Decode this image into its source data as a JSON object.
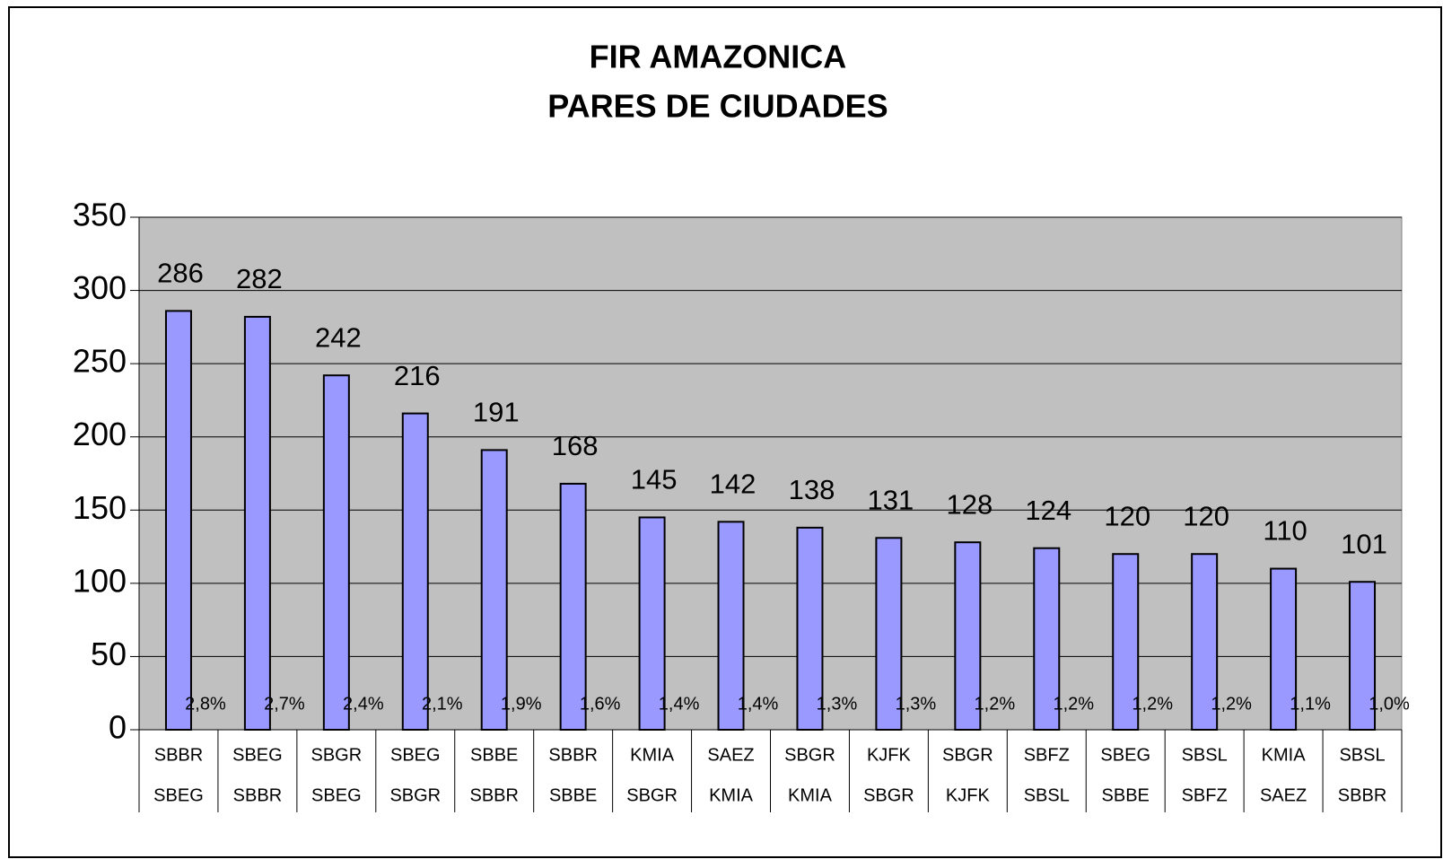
{
  "chart_data": {
    "type": "bar",
    "title": [
      "FIR AMAZONICA",
      "PARES DE CIUDADES"
    ],
    "categories": [
      [
        "SBBR",
        "SBEG"
      ],
      [
        "SBEG",
        "SBBR"
      ],
      [
        "SBGR",
        "SBEG"
      ],
      [
        "SBEG",
        "SBGR"
      ],
      [
        "SBBE",
        "SBBR"
      ],
      [
        "SBBR",
        "SBBE"
      ],
      [
        "KMIA",
        "SBGR"
      ],
      [
        "SAEZ",
        "KMIA"
      ],
      [
        "SBGR",
        "KMIA"
      ],
      [
        "KJFK",
        "SBGR"
      ],
      [
        "SBGR",
        "KJFK"
      ],
      [
        "SBFZ",
        "SBSL"
      ],
      [
        "SBEG",
        "SBBE"
      ],
      [
        "SBSL",
        "SBFZ"
      ],
      [
        "KMIA",
        "SAEZ"
      ],
      [
        "SBSL",
        "SBBR"
      ]
    ],
    "values": [
      286,
      282,
      242,
      216,
      191,
      168,
      145,
      142,
      138,
      131,
      128,
      124,
      120,
      120,
      110,
      101
    ],
    "shares": [
      2.8,
      2.7,
      2.4,
      2.1,
      1.9,
      1.6,
      1.4,
      1.4,
      1.3,
      1.3,
      1.2,
      1.2,
      1.2,
      1.2,
      1.1,
      1.0
    ],
    "share_labels": [
      "2,8%",
      "2,7%",
      "2,4%",
      "2,1%",
      "1,9%",
      "1,6%",
      "1,4%",
      "1,4%",
      "1,3%",
      "1,3%",
      "1,2%",
      "1,2%",
      "1,2%",
      "1,2%",
      "1,1%",
      "1,0%"
    ],
    "color": "#9999ff",
    "plot_background": "#c0c0c0",
    "ylim": [
      0,
      350
    ],
    "yticks": [
      0,
      50,
      100,
      150,
      200,
      250,
      300,
      350
    ],
    "grid": true
  }
}
